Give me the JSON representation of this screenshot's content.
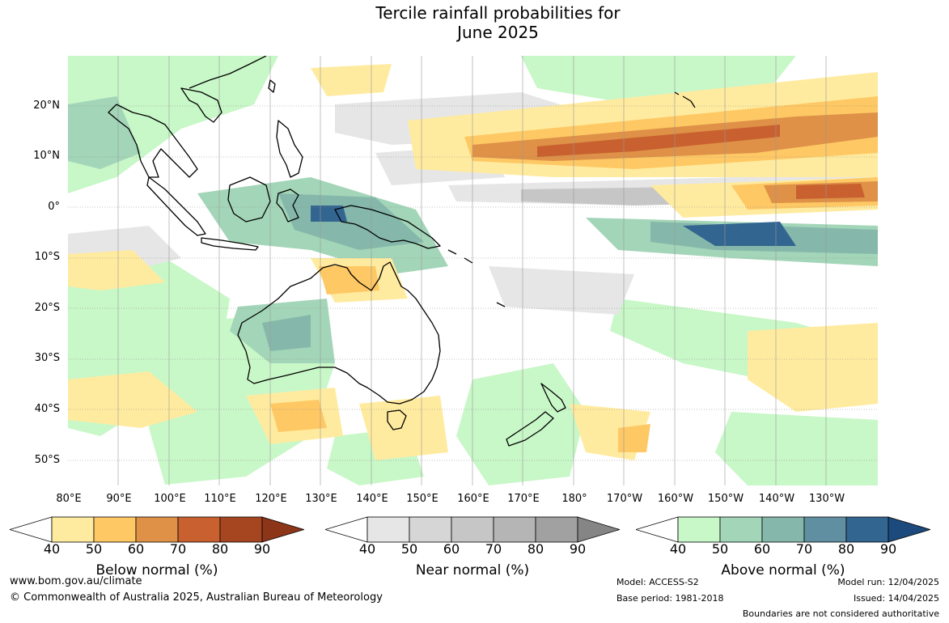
{
  "title": {
    "line1": "Tercile rainfall probabilities for",
    "line2": "June 2025"
  },
  "map": {
    "projection": "equirectangular",
    "lon_range": [
      80,
      240
    ],
    "lat_range": [
      -55,
      30
    ],
    "lat_ticks": [
      "20°N",
      "10°N",
      "0°",
      "10°S",
      "20°S",
      "30°S",
      "40°S",
      "50°S"
    ],
    "lon_ticks": [
      "80°E",
      "90°E",
      "100°E",
      "110°E",
      "120°E",
      "130°E",
      "140°E",
      "150°E",
      "160°E",
      "170°E",
      "180°",
      "170°W",
      "160°W",
      "150°W",
      "140°W",
      "130°W"
    ],
    "gridlines": true,
    "features": [
      "Australia coastline",
      "New Zealand coastline",
      "Indonesia and Papua New Guinea coastlines",
      "Southeast Asia coastline and borders",
      "Pacific island outlines"
    ],
    "ocean_colors": {
      "below": "#fdc66a",
      "near": "#d6d6d6",
      "above": "#c8f7c8"
    }
  },
  "legends": [
    {
      "title": "Below normal (%)",
      "ticks": [
        "40",
        "50",
        "60",
        "70",
        "80",
        "90"
      ],
      "colors": [
        "#ffffff",
        "#ffeb9f",
        "#fec864",
        "#de9147",
        "#c8612f",
        "#a64621",
        "#8c3519"
      ]
    },
    {
      "title": "Near normal (%)",
      "ticks": [
        "40",
        "50",
        "60",
        "70",
        "80",
        "90"
      ],
      "colors": [
        "#ffffff",
        "#e6e6e6",
        "#d6d6d6",
        "#c6c6c6",
        "#b5b5b5",
        "#a1a1a1",
        "#858585"
      ]
    },
    {
      "title": "Above normal (%)",
      "ticks": [
        "40",
        "50",
        "60",
        "70",
        "80",
        "90"
      ],
      "colors": [
        "#ffffff",
        "#c8f7c8",
        "#a3d5b8",
        "#85b8aa",
        "#5f8fa0",
        "#336591",
        "#1d4a7d"
      ]
    }
  ],
  "footer": {
    "website": "www.bom.gov.au/climate",
    "copyright": "© Commonwealth of Australia 2025, Australian Bureau of Meteorology",
    "model": "Model: ACCESS-S2",
    "base_period": "Base period: 1981-2018",
    "model_run": "Model run: 12/04/2025",
    "issued": "Issued: 14/04/2025",
    "disclaimer": "Boundaries are not considered authoritative"
  }
}
